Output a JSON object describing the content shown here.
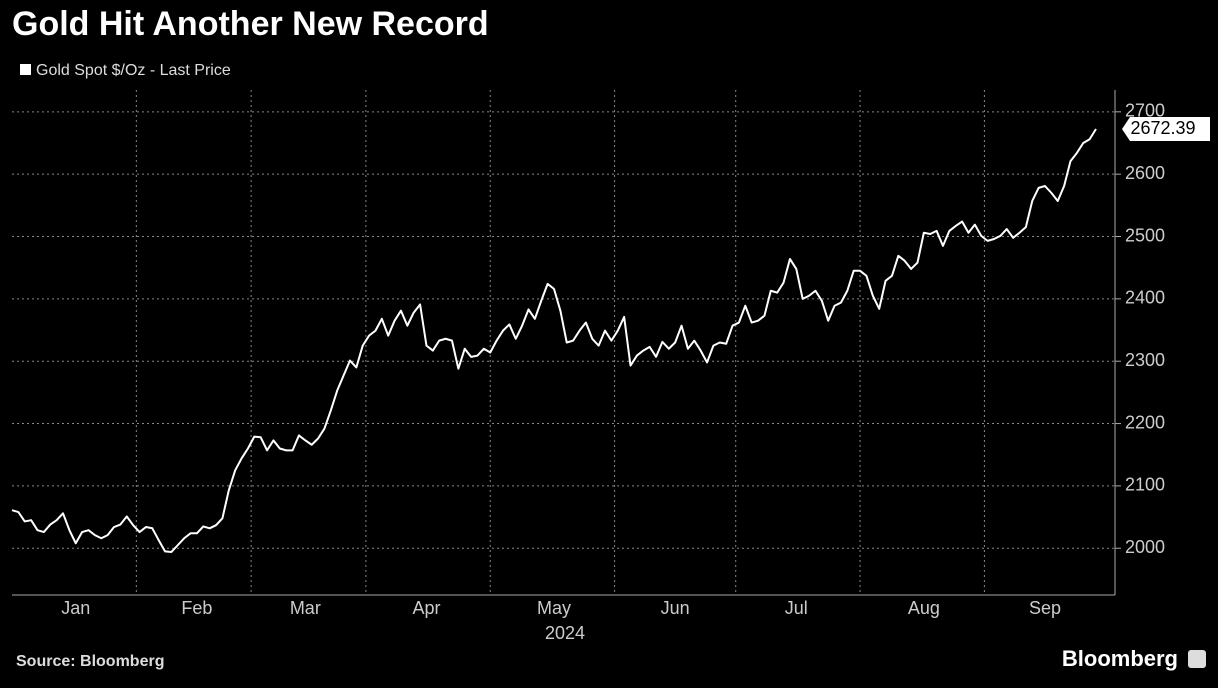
{
  "chart_data": {
    "type": "line",
    "title": "Gold Hit Another New Record",
    "xlabel": "2024",
    "source": "Source: Bloomberg",
    "brand": "Bloomberg",
    "categories": [
      null,
      null,
      null,
      null,
      null,
      null,
      null,
      null,
      null,
      null,
      "Jan",
      null,
      null,
      null,
      null,
      null,
      null,
      null,
      null,
      null,
      null,
      null,
      null,
      null,
      null,
      null,
      null,
      null,
      null,
      "Feb",
      null,
      null,
      null,
      null,
      null,
      null,
      null,
      null,
      null,
      null,
      null,
      null,
      null,
      null,
      null,
      null,
      "Mar",
      null,
      null,
      null,
      null,
      null,
      null,
      null,
      null,
      null,
      null,
      null,
      null,
      null,
      null,
      null,
      null,
      null,
      null,
      "Apr",
      null,
      null,
      null,
      null,
      null,
      null,
      null,
      null,
      null,
      null,
      null,
      null,
      null,
      null,
      null,
      null,
      null,
      null,
      null,
      "May",
      null,
      null,
      null,
      null,
      null,
      null,
      null,
      null,
      null,
      null,
      null,
      null,
      null,
      null,
      null,
      null,
      null,
      null,
      "Jun",
      null,
      null,
      null,
      null,
      null,
      null,
      null,
      null,
      null,
      null,
      null,
      null,
      null,
      null,
      null,
      null,
      null,
      null,
      "Jul",
      null,
      null,
      null,
      null,
      null,
      null,
      null,
      null,
      null,
      null,
      null,
      null,
      null,
      null,
      null,
      null,
      null,
      null,
      null,
      "Aug",
      null,
      null,
      null,
      null,
      null,
      null,
      null,
      null,
      null,
      null,
      null,
      null,
      null,
      null,
      null,
      null,
      null,
      null,
      "Sep",
      null,
      null,
      null,
      null,
      null,
      null,
      null,
      null
    ],
    "series": [
      {
        "name": "Gold Spot $/Oz - Last Price",
        "color": "#ffffff",
        "values": [
          2061,
          2058,
          2043,
          2045,
          2029,
          2026,
          2038,
          2045,
          2056,
          2029,
          2008,
          2026,
          2029,
          2021,
          2016,
          2021,
          2034,
          2038,
          2051,
          2037,
          2026,
          2034,
          2032,
          2013,
          1995,
          1994,
          2005,
          2016,
          2024,
          2024,
          2035,
          2032,
          2037,
          2048,
          2093,
          2125,
          2144,
          2160,
          2179,
          2178,
          2157,
          2173,
          2160,
          2157,
          2157,
          2181,
          2173,
          2166,
          2176,
          2192,
          2221,
          2253,
          2277,
          2301,
          2290,
          2325,
          2341,
          2349,
          2368,
          2341,
          2365,
          2381,
          2357,
          2378,
          2391,
          2325,
          2317,
          2333,
          2336,
          2333,
          2288,
          2320,
          2307,
          2309,
          2320,
          2314,
          2333,
          2349,
          2359,
          2336,
          2357,
          2383,
          2368,
          2397,
          2424,
          2416,
          2381,
          2330,
          2333,
          2349,
          2362,
          2336,
          2325,
          2349,
          2333,
          2349,
          2371,
          2293,
          2309,
          2317,
          2323,
          2307,
          2331,
          2320,
          2330,
          2357,
          2320,
          2333,
          2317,
          2298,
          2325,
          2330,
          2328,
          2357,
          2362,
          2389,
          2362,
          2365,
          2373,
          2413,
          2410,
          2426,
          2464,
          2448,
          2400,
          2405,
          2413,
          2397,
          2365,
          2389,
          2394,
          2413,
          2445,
          2445,
          2437,
          2405,
          2384,
          2429,
          2437,
          2469,
          2461,
          2448,
          2458,
          2506,
          2504,
          2509,
          2485,
          2509,
          2517,
          2524,
          2506,
          2519,
          2501,
          2493,
          2496,
          2501,
          2512,
          2498,
          2506,
          2515,
          2557,
          2578,
          2581,
          2570,
          2557,
          2581,
          2621,
          2634,
          2650,
          2656,
          2672.39
        ]
      }
    ],
    "ylim": [
      1925,
      2735
    ],
    "yticks": [
      2000,
      2100,
      2200,
      2300,
      2400,
      2500,
      2600,
      2700
    ],
    "grid": true
  }
}
